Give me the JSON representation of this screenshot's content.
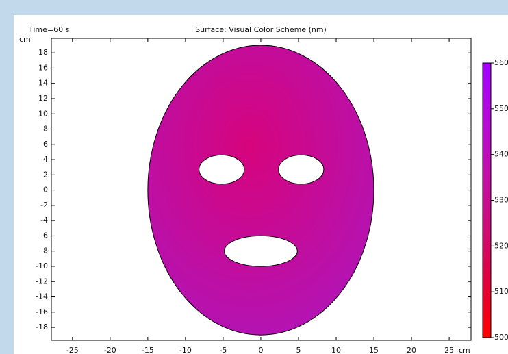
{
  "chart_data": {
    "type": "surface",
    "time_label": "Time=60 s",
    "title": "Surface: Visual Color Scheme (nm)",
    "y_unit": "cm",
    "x_unit": "cm",
    "xlim": [
      -27.8,
      27.9
    ],
    "ylim": [
      -19.7,
      19.9
    ],
    "xticks": [
      -25,
      -20,
      -15,
      -10,
      -5,
      0,
      5,
      10,
      15,
      20,
      25
    ],
    "yticks": [
      -18,
      -16,
      -14,
      -12,
      -10,
      -8,
      -6,
      -4,
      -2,
      0,
      2,
      4,
      6,
      8,
      10,
      12,
      14,
      16,
      18
    ],
    "surface_colors": [
      "#d6047c",
      "#b214b6"
    ],
    "shapes": [
      {
        "cx": 0,
        "cy": 0,
        "rx": 15,
        "ry": 19
      },
      {
        "cx": -5.2,
        "cy": 2.7,
        "rx": 3,
        "ry": 1.9
      },
      {
        "cx": 5.35,
        "cy": 2.7,
        "rx": 3,
        "ry": 1.9
      },
      {
        "cx": 0,
        "cy": -8,
        "rx": 4.85,
        "ry": 2
      }
    ],
    "colorbar": {
      "lim": [
        500,
        560
      ],
      "ticks": [
        500,
        510,
        520,
        530,
        540,
        550,
        560
      ],
      "colors": [
        "#ff0000",
        "#e0003a",
        "#cc0c78",
        "#c010aa",
        "#b40ad8",
        "#a000ff"
      ]
    }
  }
}
